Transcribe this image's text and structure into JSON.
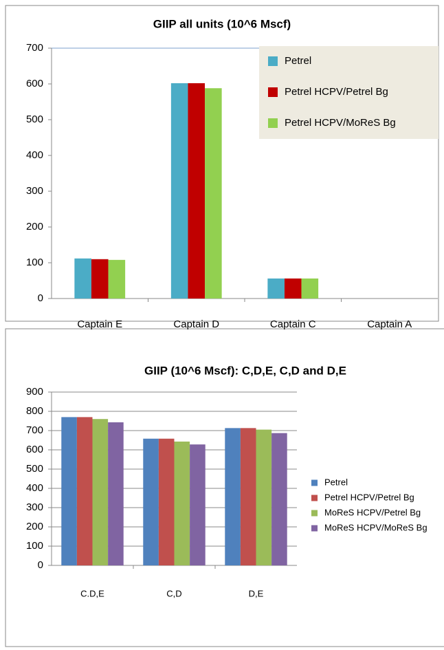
{
  "chart_data": [
    {
      "type": "bar",
      "title": "GIIP all units (10^6 Mscf)",
      "categories": [
        "Captain E",
        "Captain D",
        "Captain C",
        "Captain A"
      ],
      "series": [
        {
          "name": "Petrel",
          "color": "#4bacc6",
          "values": [
            112,
            602,
            56,
            0
          ]
        },
        {
          "name": "Petrel HCPV/Petrel Bg",
          "color": "#c00000",
          "values": [
            110,
            602,
            56,
            0
          ]
        },
        {
          "name": "Petrel HCPV/MoReS Bg",
          "color": "#92d050",
          "values": [
            108,
            588,
            56,
            0
          ]
        }
      ],
      "ylim": [
        0,
        700
      ],
      "yticks": [
        0,
        100,
        200,
        300,
        400,
        500,
        600,
        700
      ],
      "grid": false,
      "legend": "top-right"
    },
    {
      "type": "bar",
      "title": "GIIP (10^6 Mscf): C,D,E,  C,D and  D,E",
      "categories": [
        "C.D,E",
        "C,D",
        "D,E"
      ],
      "series": [
        {
          "name": "Petrel",
          "color": "#4f81bd",
          "values": [
            770,
            658,
            713
          ]
        },
        {
          "name": "Petrel HCPV/Petrel Bg",
          "color": "#c0504d",
          "values": [
            770,
            658,
            713
          ]
        },
        {
          "name": "MoReS HCPV/Petrel Bg",
          "color": "#9bbb59",
          "values": [
            760,
            643,
            705
          ]
        },
        {
          "name": "MoReS HCPV/MoReS Bg",
          "color": "#8064a2",
          "values": [
            743,
            628,
            687
          ]
        }
      ],
      "ylim": [
        0,
        900
      ],
      "yticks": [
        0,
        100,
        200,
        300,
        400,
        500,
        600,
        700,
        800,
        900
      ],
      "grid": true,
      "legend": "right"
    }
  ]
}
